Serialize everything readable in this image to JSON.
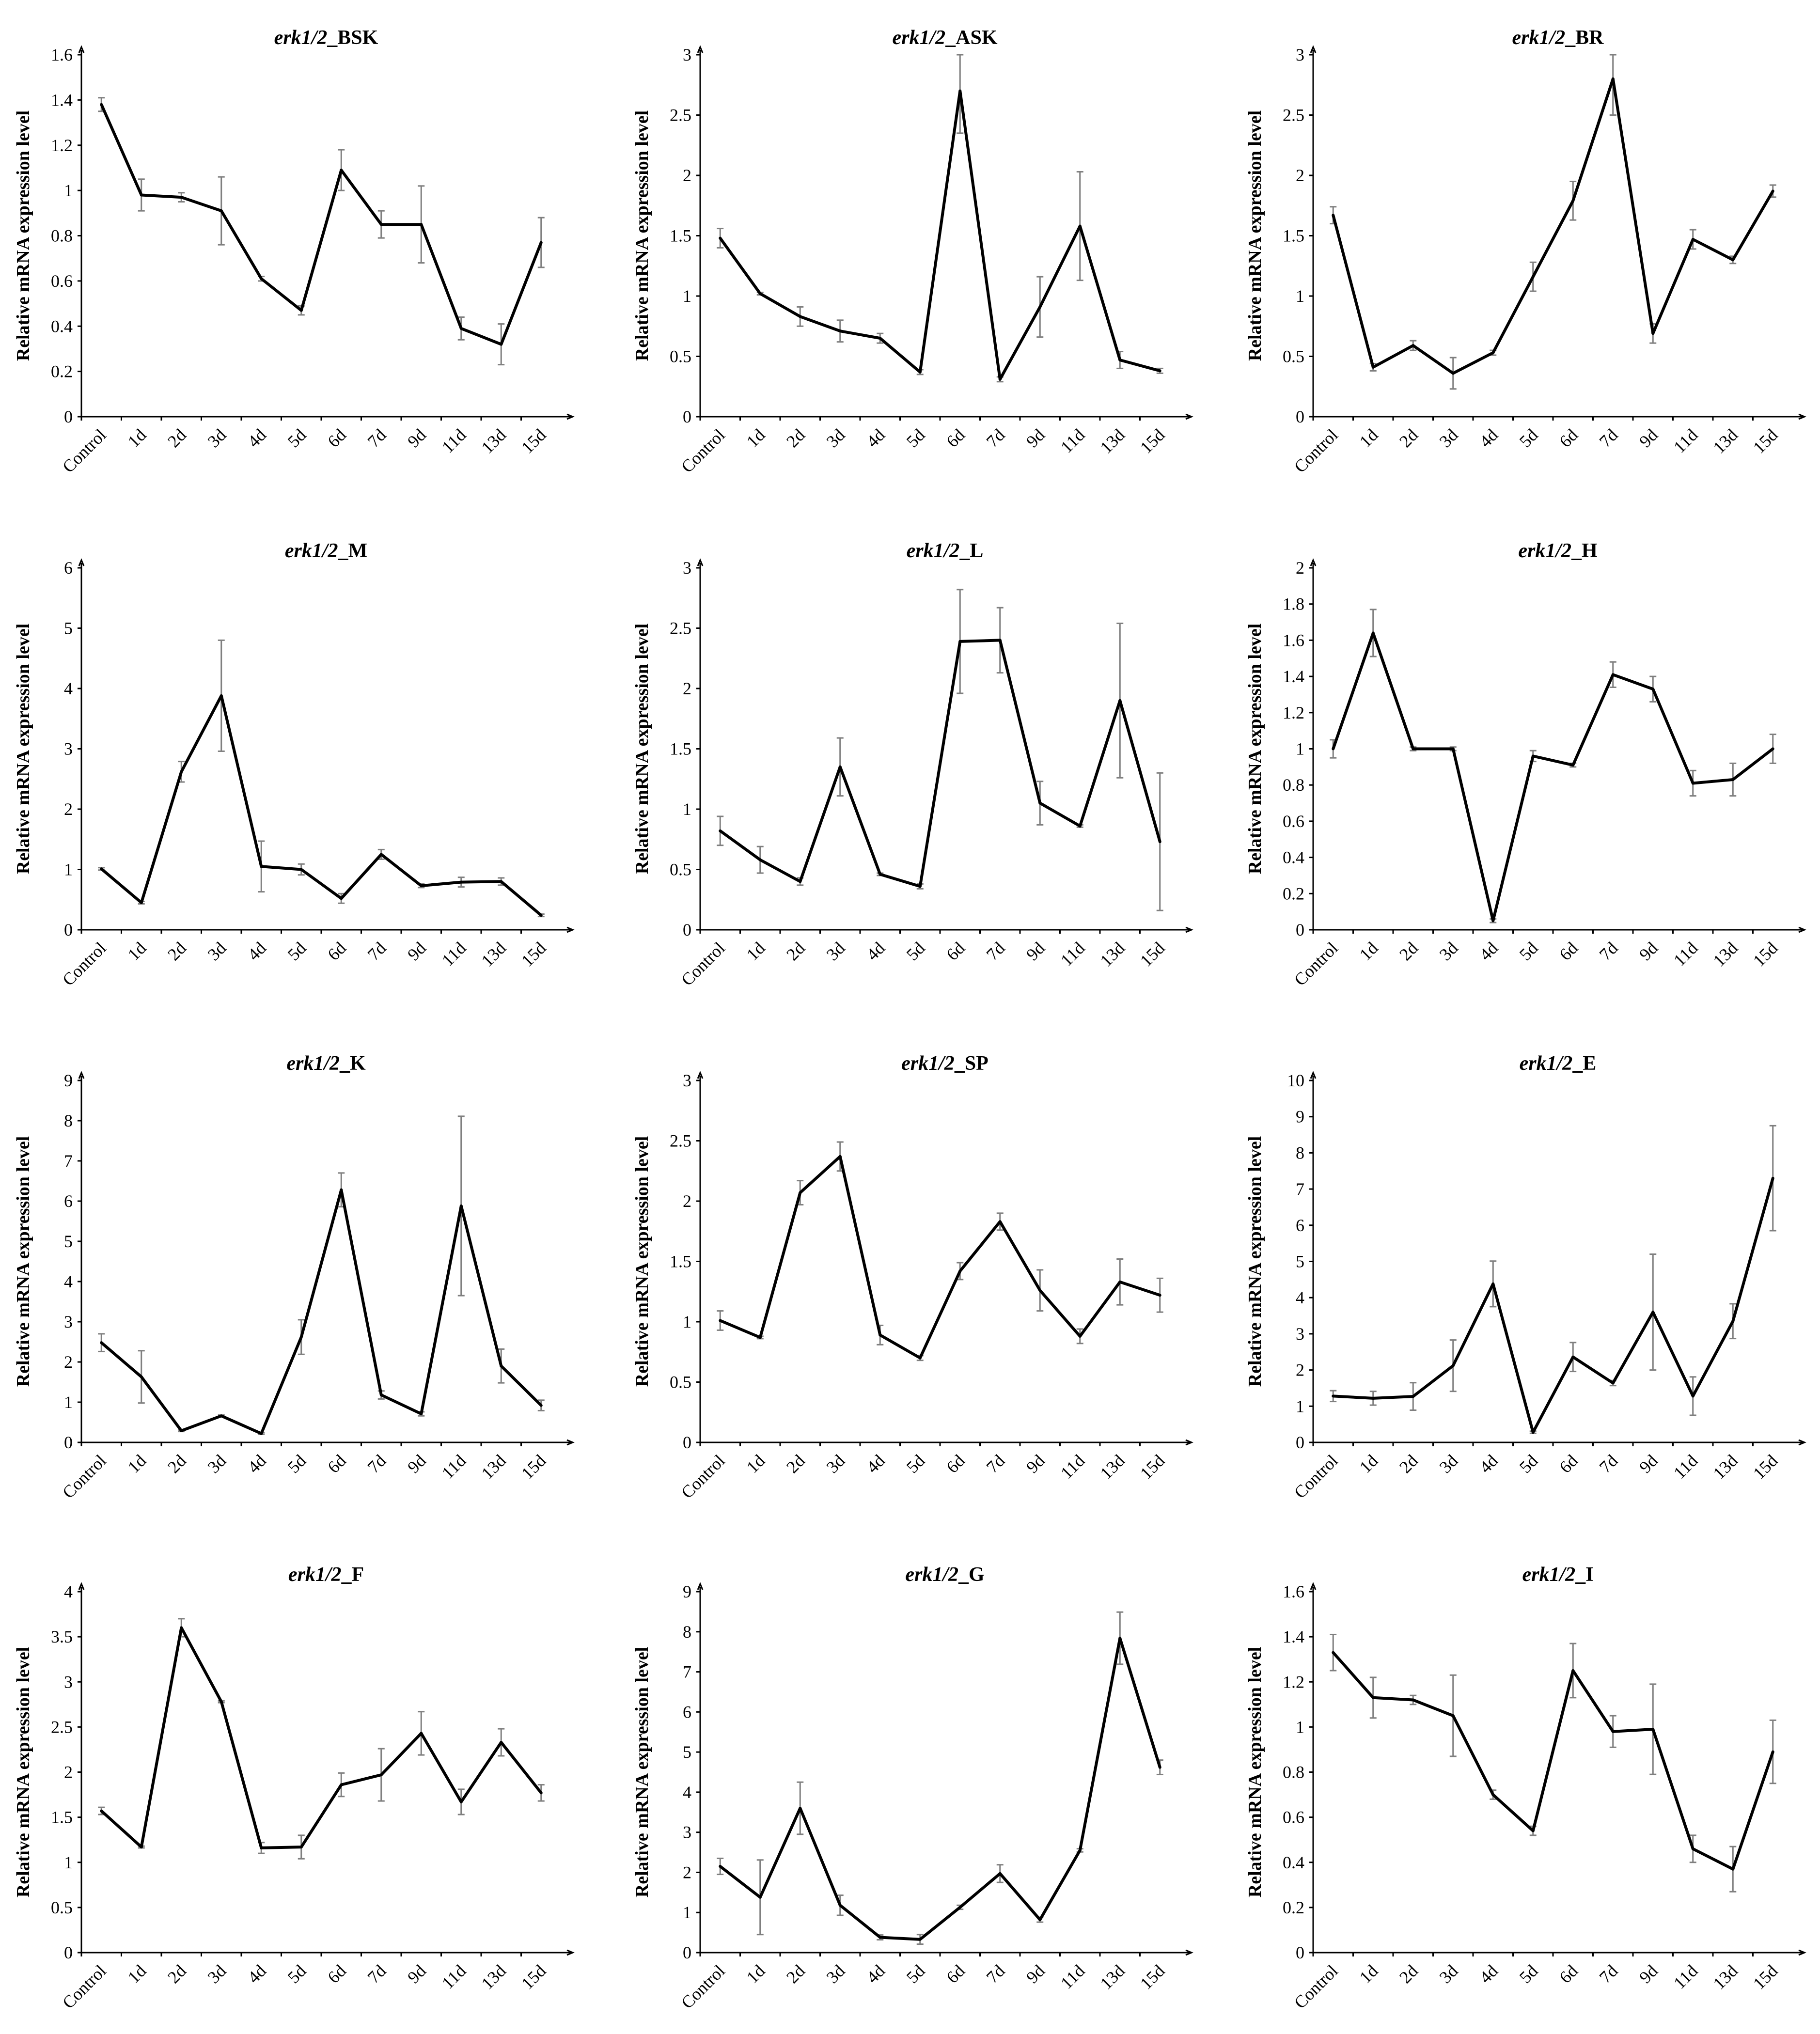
{
  "chart_data": [
    {
      "type": "line",
      "title": "erk1/2_BSK",
      "title_italic": "erk1/2",
      "title_suffix": "_BSK",
      "ylabel": "Relative mRNA expression  level",
      "categories": [
        "Control",
        "1d",
        "2d",
        "3d",
        "4d",
        "5d",
        "6d",
        "7d",
        "9d",
        "11d",
        "13d",
        "15d"
      ],
      "yticks": [
        "0",
        "0.2",
        "0.4",
        "0.6",
        "0.8",
        "1",
        "1.2",
        "1.4",
        "1.6"
      ],
      "ylim": [
        0,
        1.6
      ],
      "values": [
        1.38,
        0.98,
        0.97,
        0.91,
        0.61,
        0.47,
        1.09,
        0.85,
        0.85,
        0.39,
        0.32,
        0.77
      ],
      "errors": [
        0.03,
        0.07,
        0.02,
        0.15,
        0.01,
        0.02,
        0.09,
        0.06,
        0.17,
        0.05,
        0.09,
        0.11
      ]
    },
    {
      "type": "line",
      "title": "erk1/2_ASK",
      "title_italic": "erk1/2",
      "title_suffix": "_ASK",
      "ylabel": "Relative mRNA expression  level",
      "categories": [
        "Control",
        "1d",
        "2d",
        "3d",
        "4d",
        "5d",
        "6d",
        "7d",
        "9d",
        "11d",
        "13d",
        "15d"
      ],
      "yticks": [
        "0",
        "0.5",
        "1",
        "1.5",
        "2",
        "2.5",
        "3"
      ],
      "ylim": [
        0,
        3
      ],
      "values": [
        1.48,
        1.02,
        0.83,
        0.71,
        0.65,
        0.37,
        2.7,
        0.31,
        0.91,
        1.58,
        0.47,
        0.38
      ],
      "errors": [
        0.08,
        0.01,
        0.08,
        0.09,
        0.04,
        0.02,
        0.35,
        0.02,
        0.25,
        0.45,
        0.07,
        0.02
      ]
    },
    {
      "type": "line",
      "title": "erk1/2_BR",
      "title_italic": "erk1/2",
      "title_suffix": "_BR",
      "ylabel": "Relative mRNA expression  level",
      "categories": [
        "Control",
        "1d",
        "2d",
        "3d",
        "4d",
        "5d",
        "6d",
        "7d",
        "9d",
        "11d",
        "13d",
        "15d"
      ],
      "yticks": [
        "0",
        "0.5",
        "1",
        "1.5",
        "2",
        "2.5",
        "3"
      ],
      "ylim": [
        0,
        3
      ],
      "values": [
        1.67,
        0.41,
        0.59,
        0.36,
        0.53,
        1.16,
        1.79,
        2.8,
        0.69,
        1.47,
        1.3,
        1.87
      ],
      "errors": [
        0.07,
        0.03,
        0.04,
        0.13,
        0.02,
        0.12,
        0.16,
        0.3,
        0.08,
        0.08,
        0.03,
        0.05
      ]
    },
    {
      "type": "line",
      "title": "erk1/2_M",
      "title_italic": "erk1/2",
      "title_suffix": "_M",
      "ylabel": "Relative mRNA expression  level",
      "categories": [
        "Control",
        "1d",
        "2d",
        "3d",
        "4d",
        "5d",
        "6d",
        "7d",
        "9d",
        "11d",
        "13d",
        "15d"
      ],
      "yticks": [
        "0",
        "1",
        "2",
        "3",
        "4",
        "5",
        "6"
      ],
      "ylim": [
        0,
        6
      ],
      "values": [
        1.01,
        0.45,
        2.62,
        3.88,
        1.05,
        1.0,
        0.52,
        1.25,
        0.73,
        0.79,
        0.8,
        0.24
      ],
      "errors": [
        0.02,
        0.02,
        0.17,
        0.92,
        0.42,
        0.09,
        0.08,
        0.08,
        0.03,
        0.08,
        0.06,
        0.02
      ]
    },
    {
      "type": "line",
      "title": "erk1/2_L",
      "title_italic": "erk1/2",
      "title_suffix": "_L",
      "ylabel": "Relative mRNA expression  level",
      "categories": [
        "Control",
        "1d",
        "2d",
        "3d",
        "4d",
        "5d",
        "6d",
        "7d",
        "9d",
        "11d",
        "13d",
        "15d"
      ],
      "yticks": [
        "0",
        "0.5",
        "1",
        "1.5",
        "2",
        "2.5",
        "3"
      ],
      "ylim": [
        0,
        3
      ],
      "values": [
        0.82,
        0.58,
        0.4,
        1.35,
        0.46,
        0.36,
        2.39,
        2.4,
        1.05,
        0.86,
        1.9,
        0.73
      ],
      "errors": [
        0.12,
        0.11,
        0.03,
        0.24,
        0.01,
        0.02,
        0.43,
        0.27,
        0.18,
        0.01,
        0.64,
        0.57
      ]
    },
    {
      "type": "line",
      "title": "erk1/2_H",
      "title_italic": "erk1/2",
      "title_suffix": "_H",
      "ylabel": "Relative mRNA expression  level",
      "categories": [
        "Control",
        "1d",
        "2d",
        "3d",
        "4d",
        "5d",
        "6d",
        "7d",
        "9d",
        "11d",
        "13d",
        "15d"
      ],
      "yticks": [
        "0",
        "0.2",
        "0.4",
        "0.6",
        "0.8",
        "1",
        "1.2",
        "1.4",
        "1.6",
        "1.8",
        "2"
      ],
      "ylim": [
        0,
        2
      ],
      "values": [
        1.0,
        1.64,
        1.0,
        1.0,
        0.05,
        0.96,
        0.91,
        1.41,
        1.33,
        0.81,
        0.83,
        1.0
      ],
      "errors": [
        0.05,
        0.13,
        0.01,
        0.01,
        0.01,
        0.03,
        0.01,
        0.07,
        0.07,
        0.07,
        0.09,
        0.08
      ]
    },
    {
      "type": "line",
      "title": "erk1/2_K",
      "title_italic": "erk1/2",
      "title_suffix": "_K",
      "ylabel": "Relative mRNA expression  level",
      "categories": [
        "Control",
        "1d",
        "2d",
        "3d",
        "4d",
        "5d",
        "6d",
        "7d",
        "9d",
        "11d",
        "13d",
        "15d"
      ],
      "yticks": [
        "0",
        "1",
        "2",
        "3",
        "4",
        "5",
        "6",
        "7",
        "8",
        "9"
      ],
      "ylim": [
        0,
        9
      ],
      "values": [
        2.48,
        1.63,
        0.29,
        0.66,
        0.22,
        2.62,
        6.28,
        1.18,
        0.71,
        5.88,
        1.9,
        0.92
      ],
      "errors": [
        0.22,
        0.65,
        0.02,
        0.02,
        0.02,
        0.43,
        0.42,
        0.1,
        0.05,
        2.23,
        0.42,
        0.13
      ]
    },
    {
      "type": "line",
      "title": "erk1/2_SP",
      "title_italic": "erk1/2",
      "title_suffix": "_SP",
      "ylabel": "Relative mRNA expression  level",
      "categories": [
        "Control",
        "1d",
        "2d",
        "3d",
        "4d",
        "5d",
        "6d",
        "7d",
        "9d",
        "11d",
        "13d",
        "15d"
      ],
      "yticks": [
        "0",
        "0.5",
        "1",
        "1.5",
        "2",
        "2.5",
        "3"
      ],
      "ylim": [
        0,
        3
      ],
      "values": [
        1.01,
        0.87,
        2.07,
        2.37,
        0.89,
        0.7,
        1.42,
        1.83,
        1.26,
        0.88,
        1.33,
        1.22
      ],
      "errors": [
        0.08,
        0.01,
        0.1,
        0.12,
        0.08,
        0.02,
        0.07,
        0.07,
        0.17,
        0.06,
        0.19,
        0.14
      ]
    },
    {
      "type": "line",
      "title": "erk1/2_E",
      "title_italic": "erk1/2",
      "title_suffix": "_E",
      "ylabel": "Relative mRNA expression  level",
      "categories": [
        "Control",
        "1d",
        "2d",
        "3d",
        "4d",
        "5d",
        "6d",
        "7d",
        "9d",
        "11d",
        "13d",
        "15d"
      ],
      "yticks": [
        "0",
        "1",
        "2",
        "3",
        "4",
        "5",
        "6",
        "7",
        "8",
        "9",
        "10"
      ],
      "ylim": [
        0,
        10
      ],
      "values": [
        1.28,
        1.22,
        1.27,
        2.12,
        4.38,
        0.28,
        2.36,
        1.64,
        3.6,
        1.28,
        3.35,
        7.3
      ],
      "errors": [
        0.15,
        0.19,
        0.38,
        0.71,
        0.63,
        0.03,
        0.4,
        0.07,
        1.6,
        0.53,
        0.48,
        1.45
      ]
    },
    {
      "type": "line",
      "title": "erk1/2_F",
      "title_italic": "erk1/2",
      "title_suffix": "_F",
      "ylabel": "Relative mRNA expression  level",
      "categories": [
        "Control",
        "1d",
        "2d",
        "3d",
        "4d",
        "5d",
        "6d",
        "7d",
        "9d",
        "11d",
        "13d",
        "15d"
      ],
      "yticks": [
        "0",
        "0.5",
        "1",
        "1.5",
        "2",
        "2.5",
        "3",
        "3.5",
        "4"
      ],
      "ylim": [
        0,
        4
      ],
      "values": [
        1.57,
        1.17,
        3.6,
        2.78,
        1.16,
        1.17,
        1.86,
        1.97,
        2.43,
        1.67,
        2.33,
        1.77
      ],
      "errors": [
        0.04,
        0.01,
        0.1,
        0.01,
        0.06,
        0.13,
        0.13,
        0.29,
        0.24,
        0.14,
        0.15,
        0.09
      ]
    },
    {
      "type": "line",
      "title": "erk1/2_G",
      "title_italic": "erk1/2",
      "title_suffix": "_G",
      "ylabel": "Relative mRNA expression  level",
      "categories": [
        "Control",
        "1d",
        "2d",
        "3d",
        "4d",
        "5d",
        "6d",
        "7d",
        "9d",
        "11d",
        "13d",
        "15d"
      ],
      "yticks": [
        "0",
        "1",
        "2",
        "3",
        "4",
        "5",
        "6",
        "7",
        "8",
        "9"
      ],
      "ylim": [
        0,
        9
      ],
      "values": [
        2.15,
        1.38,
        3.6,
        1.18,
        0.38,
        0.33,
        1.13,
        1.97,
        0.82,
        2.55,
        7.84,
        4.62
      ],
      "errors": [
        0.2,
        0.93,
        0.65,
        0.25,
        0.06,
        0.12,
        0.05,
        0.22,
        0.06,
        0.04,
        0.65,
        0.18
      ]
    },
    {
      "type": "line",
      "title": "erk1/2_I",
      "title_italic": "erk1/2",
      "title_suffix": "_I",
      "ylabel": "Relative mRNA expression  level",
      "categories": [
        "Control",
        "1d",
        "2d",
        "3d",
        "4d",
        "5d",
        "6d",
        "7d",
        "9d",
        "11d",
        "13d",
        "15d"
      ],
      "yticks": [
        "0",
        "0.2",
        "0.4",
        "0.6",
        "0.8",
        "1",
        "1.2",
        "1.4",
        "1.6"
      ],
      "ylim": [
        0,
        1.6
      ],
      "values": [
        1.33,
        1.13,
        1.12,
        1.05,
        0.7,
        0.54,
        1.25,
        0.98,
        0.99,
        0.46,
        0.37,
        0.89
      ],
      "errors": [
        0.08,
        0.09,
        0.02,
        0.18,
        0.02,
        0.02,
        0.12,
        0.07,
        0.2,
        0.06,
        0.1,
        0.14
      ]
    }
  ]
}
